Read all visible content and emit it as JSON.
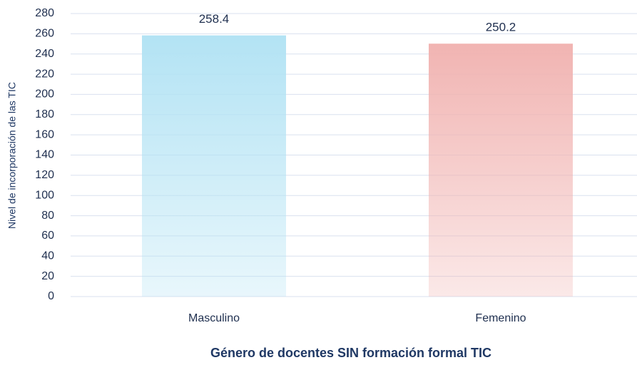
{
  "chart_data": {
    "type": "bar",
    "x_label": "Género de docentes SIN formación formal TIC",
    "y_label": "Nivel de incorporación de las TIC",
    "categories": [
      "Masculino",
      "Femenino"
    ],
    "values": [
      258.4,
      250.2
    ],
    "colors": [
      "#b3e3f4",
      "#f1b4b2"
    ],
    "ylim": [
      0,
      280
    ],
    "yticks": [
      0,
      20,
      40,
      60,
      80,
      100,
      120,
      140,
      160,
      180,
      200,
      220,
      240,
      260,
      280
    ],
    "grid": true
  }
}
